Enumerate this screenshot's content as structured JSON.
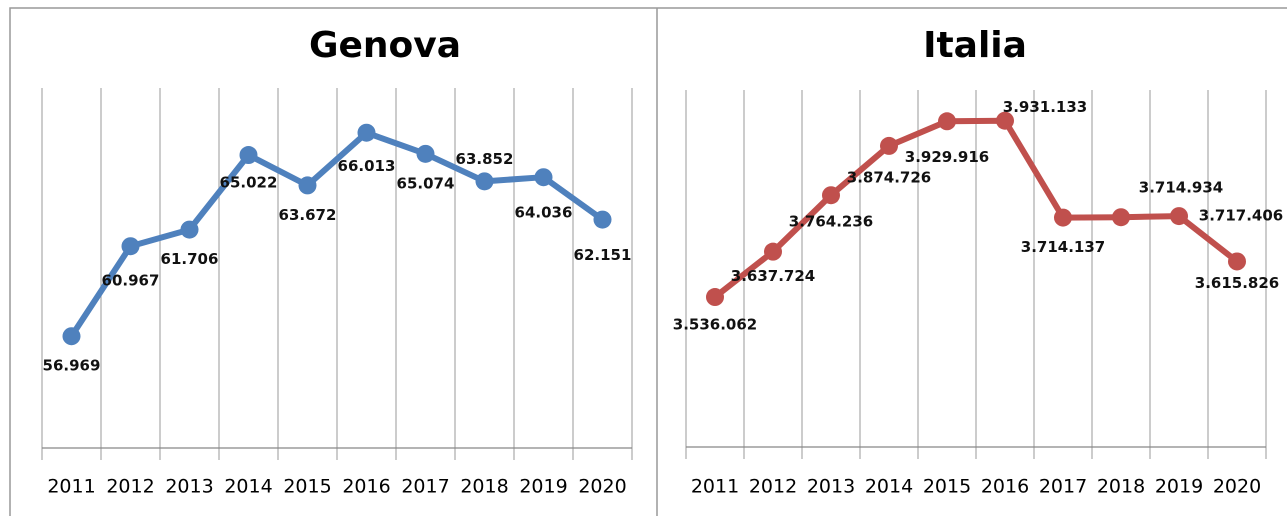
{
  "chart_data": [
    {
      "type": "line",
      "title": "Genova",
      "categories": [
        "2011",
        "2012",
        "2013",
        "2014",
        "2015",
        "2016",
        "2017",
        "2018",
        "2019",
        "2020"
      ],
      "values": [
        56969,
        60967,
        61706,
        65022,
        63672,
        66013,
        65074,
        63852,
        64036,
        62151
      ],
      "value_labels": [
        "56.969",
        "60.967",
        "61.706",
        "65.022",
        "63.672",
        "66.013",
        "65.074",
        "63.852",
        "64.036",
        "62.151"
      ],
      "color": "#4f81bd",
      "ylim": [
        52000,
        68000
      ]
    },
    {
      "type": "line",
      "title": "Italia",
      "categories": [
        "2011",
        "2012",
        "2013",
        "2014",
        "2015",
        "2016",
        "2017",
        "2018",
        "2019",
        "2020"
      ],
      "values": [
        3536062,
        3637724,
        3764236,
        3874726,
        3929916,
        3931133,
        3714137,
        3714934,
        3717406,
        3615826
      ],
      "value_labels": [
        "3.536.062",
        "3.637.724",
        "3.764.236",
        "3.874.726",
        "3.929.916",
        "3.931.133",
        "3.714.137",
        "3.714.934",
        "3.717.406",
        "3.615.826"
      ],
      "color": "#c0504d",
      "ylim": [
        3200000,
        4000000
      ]
    }
  ]
}
